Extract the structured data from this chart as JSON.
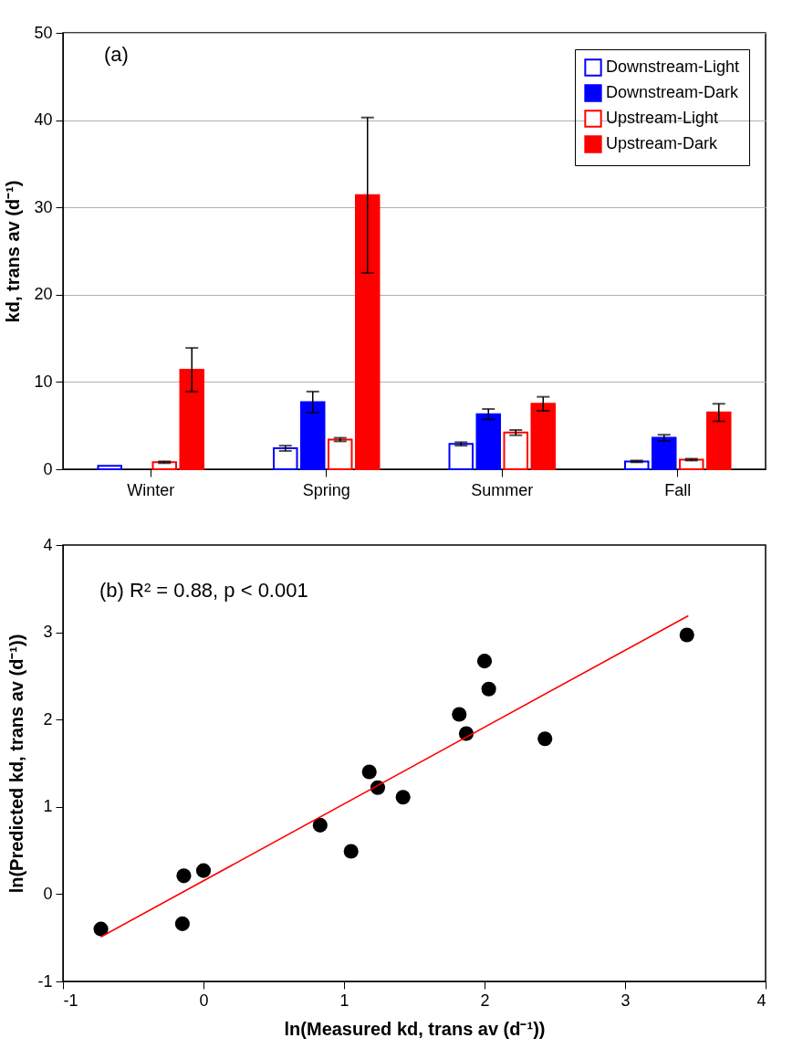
{
  "chart_data": [
    {
      "type": "bar",
      "ylabel": "kd, trans av (d⁻¹)",
      "annotations": [
        "(a)"
      ],
      "categories": [
        "Winter",
        "Spring",
        "Summer",
        "Fall"
      ],
      "series": [
        {
          "name": "Downstream-Light",
          "color": "#0000ff",
          "values": [
            0.4,
            2.4,
            2.9,
            0.9
          ],
          "errors": [
            null,
            0.3,
            0.2,
            0.1
          ]
        },
        {
          "name": "Downstream-Dark",
          "color": "#0000ff",
          "values": [
            null,
            7.7,
            6.3,
            3.6
          ],
          "errors": [
            null,
            1.2,
            0.6,
            0.35
          ]
        },
        {
          "name": "Upstream-Light",
          "color": "#ff0000",
          "values": [
            0.8,
            3.4,
            4.2,
            1.1
          ],
          "errors": [
            0.1,
            0.2,
            0.3,
            0.1
          ]
        },
        {
          "name": "Upstream-Dark",
          "color": "#ff0000",
          "values": [
            11.4,
            31.4,
            7.5,
            6.5
          ],
          "errors": [
            2.5,
            8.9,
            0.8,
            1.0
          ]
        }
      ],
      "ylim": [
        0,
        50
      ],
      "yticks": [
        0,
        10,
        20,
        30,
        40,
        50
      ],
      "grid": "y",
      "legend": "top right"
    },
    {
      "type": "scatter",
      "xlabel": "ln(Measured kd, trans av (d⁻¹))",
      "ylabel": "ln(Predicted kd, trans av (d⁻¹))",
      "annotations": [
        "(b) R² = 0.88, p < 0.001"
      ],
      "series": [
        {
          "type": "scatter",
          "color": "#000000",
          "x": [
            -0.73,
            -0.15,
            -0.14,
            0.0,
            0.83,
            1.05,
            1.18,
            1.24,
            1.42,
            1.82,
            1.87,
            2.0,
            2.03,
            2.43,
            3.44
          ],
          "values": [
            -0.4,
            -0.34,
            0.21,
            0.27,
            0.79,
            0.49,
            1.4,
            1.22,
            1.11,
            2.06,
            1.84,
            2.67,
            2.35,
            1.78,
            2.97
          ]
        },
        {
          "type": "line",
          "color": "#ff0000",
          "marker": "none",
          "x": [
            -0.73,
            3.45
          ],
          "values": [
            -0.49,
            3.19
          ]
        }
      ],
      "marker": "circle",
      "xlim": [
        -1,
        4
      ],
      "xticks": [
        -1,
        0,
        1,
        2,
        3,
        4
      ],
      "ylim": [
        -1,
        4
      ],
      "yticks": [
        -1,
        0,
        1,
        2,
        3,
        4
      ]
    }
  ]
}
